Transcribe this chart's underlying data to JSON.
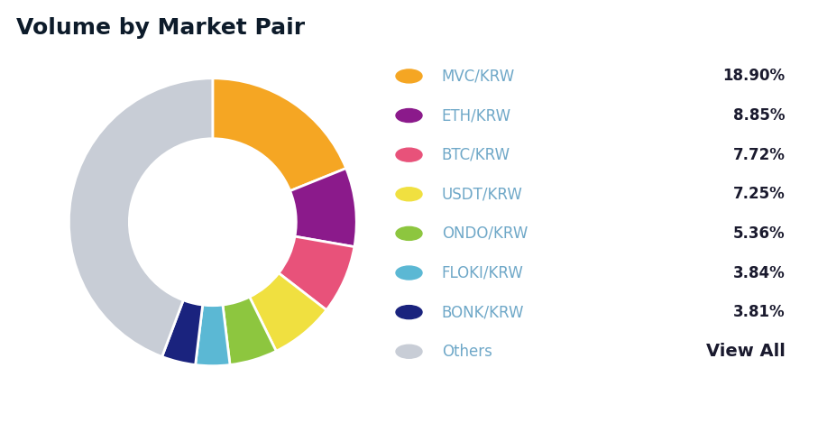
{
  "title": "Volume by Market Pair",
  "labels": [
    "MVC/KRW",
    "ETH/KRW",
    "BTC/KRW",
    "USDT/KRW",
    "ONDO/KRW",
    "FLOKI/KRW",
    "BONK/KRW",
    "Others"
  ],
  "values": [
    18.9,
    8.85,
    7.72,
    7.25,
    5.36,
    3.84,
    3.81,
    44.27
  ],
  "percentages": [
    "18.90%",
    "8.85%",
    "7.72%",
    "7.25%",
    "5.36%",
    "3.84%",
    "3.81%",
    "View All"
  ],
  "colors": [
    "#F5A623",
    "#8B1A8B",
    "#E8527A",
    "#F0E040",
    "#8DC63F",
    "#5BB8D4",
    "#1A237E",
    "#C8CDD6"
  ],
  "background_color": "#ffffff",
  "title_fontsize": 18,
  "title_color": "#0D1B2A",
  "legend_label_color": "#6FA8C8",
  "legend_pct_color": "#1a1a2e",
  "legend_label_fontsize": 12,
  "legend_pct_fontsize": 12,
  "view_all_fontsize": 14
}
